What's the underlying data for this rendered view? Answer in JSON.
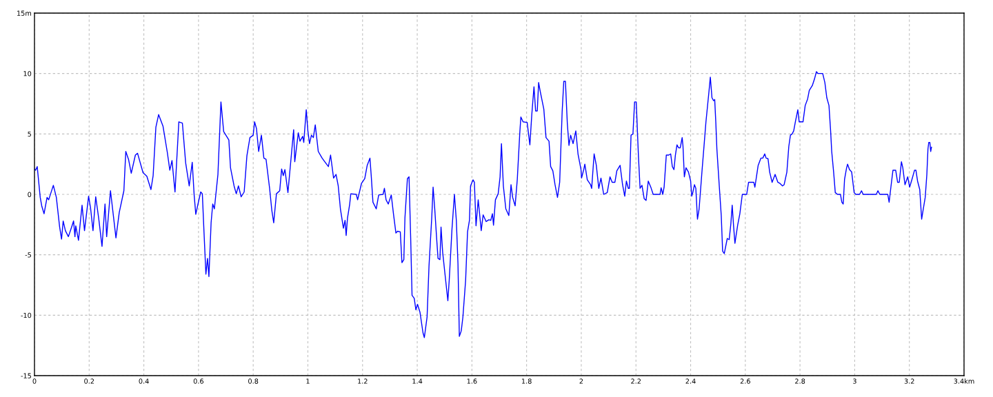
{
  "chart_data": {
    "type": "line",
    "xlim": [
      0,
      3.4
    ],
    "xticks": [
      0,
      0.2,
      0.4,
      0.6,
      0.8,
      1,
      1.2,
      1.4,
      1.6,
      1.8,
      2,
      2.2,
      2.4,
      2.6,
      2.8,
      3,
      3.2,
      {
        "value": 3.4,
        "label": "3.4km"
      }
    ],
    "ylim": [
      -15,
      15
    ],
    "yticks": [
      -15,
      -10,
      -5,
      0,
      5,
      10,
      {
        "value": 15,
        "label": "15m"
      }
    ],
    "grid": true,
    "line_style": "solid",
    "series": [
      {
        "color": "#0000ff",
        "x": [
          0,
          0.004,
          0.01,
          0.021,
          0.027,
          0.035,
          0.046,
          0.052,
          0.069,
          0.08,
          0.092,
          0.099,
          0.105,
          0.113,
          0.124,
          0.136,
          0.143,
          0.148,
          0.151,
          0.161,
          0.174,
          0.183,
          0.198,
          0.205,
          0.214,
          0.224,
          0.235,
          0.247,
          0.258,
          0.264,
          0.278,
          0.298,
          0.31,
          0.327,
          0.334,
          0.344,
          0.354,
          0.369,
          0.377,
          0.397,
          0.411,
          0.426,
          0.434,
          0.444,
          0.454,
          0.47,
          0.486,
          0.495,
          0.503,
          0.514,
          0.528,
          0.541,
          0.553,
          0.566,
          0.577,
          0.584,
          0.59,
          0.597,
          0.608,
          0.614,
          0.62,
          0.627,
          0.633,
          0.638,
          0.646,
          0.652,
          0.658,
          0.671,
          0.682,
          0.692,
          0.711,
          0.717,
          0.73,
          0.738,
          0.746,
          0.756,
          0.767,
          0.777,
          0.788,
          0.8,
          0.805,
          0.812,
          0.82,
          0.83,
          0.839,
          0.847,
          0.86,
          0.868,
          0.875,
          0.885,
          0.897,
          0.904,
          0.91,
          0.916,
          0.927,
          0.948,
          0.952,
          0.965,
          0.971,
          0.981,
          0.985,
          0.994,
          1.0,
          1.006,
          1.013,
          1.02,
          1.027,
          1.038,
          1.052,
          1.065,
          1.075,
          1.083,
          1.094,
          1.103,
          1.111,
          1.119,
          1.13,
          1.136,
          1.14,
          1.145,
          1.153,
          1.157,
          1.177,
          1.182,
          1.196,
          1.208,
          1.217,
          1.227,
          1.232,
          1.238,
          1.25,
          1.259,
          1.275,
          1.28,
          1.286,
          1.294,
          1.305,
          1.313,
          1.322,
          1.328,
          1.338,
          1.344,
          1.351,
          1.355,
          1.364,
          1.37,
          1.376,
          1.381,
          1.389,
          1.395,
          1.401,
          1.41,
          1.421,
          1.426,
          1.436,
          1.443,
          1.453,
          1.458,
          1.464,
          1.471,
          1.476,
          1.483,
          1.487,
          1.493,
          1.502,
          1.512,
          1.517,
          1.527,
          1.536,
          1.543,
          1.549,
          1.554,
          1.561,
          1.567,
          1.577,
          1.584,
          1.591,
          1.595,
          1.604,
          1.609,
          1.615,
          1.623,
          1.628,
          1.634,
          1.641,
          1.652,
          1.662,
          1.669,
          1.675,
          1.679,
          1.686,
          1.696,
          1.703,
          1.708,
          1.715,
          1.724,
          1.735,
          1.743,
          1.749,
          1.758,
          1.766,
          1.775,
          1.779,
          1.787,
          1.802,
          1.812,
          1.819,
          1.827,
          1.833,
          1.839,
          1.844,
          1.85,
          1.863,
          1.871,
          1.882,
          1.888,
          1.896,
          1.904,
          1.913,
          1.921,
          1.93,
          1.936,
          1.942,
          1.949,
          1.955,
          1.961,
          1.97,
          1.98,
          1.988,
          1.999,
          2.001,
          2.009,
          2.013,
          2.022,
          2.034,
          2.038,
          2.047,
          2.055,
          2.064,
          2.072,
          2.082,
          2.095,
          2.105,
          2.113,
          2.123,
          2.13,
          2.142,
          2.151,
          2.159,
          2.165,
          2.172,
          2.176,
          2.182,
          2.189,
          2.195,
          2.201,
          2.209,
          2.215,
          2.222,
          2.23,
          2.237,
          2.245,
          2.255,
          2.263,
          2.288,
          2.292,
          2.298,
          2.303,
          2.311,
          2.32,
          2.327,
          2.333,
          2.339,
          2.344,
          2.35,
          2.356,
          2.362,
          2.369,
          2.372,
          2.377,
          2.383,
          2.392,
          2.4,
          2.404,
          2.408,
          2.414,
          2.419,
          2.425,
          2.431,
          2.442,
          2.45,
          2.456,
          2.467,
          2.472,
          2.478,
          2.484,
          2.488,
          2.492,
          2.496,
          2.505,
          2.512,
          2.517,
          2.523,
          2.534,
          2.541,
          2.547,
          2.552,
          2.557,
          2.562,
          2.572,
          2.58,
          2.589,
          2.605,
          2.612,
          2.631,
          2.635,
          2.647,
          2.657,
          2.664,
          2.671,
          2.676,
          2.683,
          2.689,
          2.698,
          2.709,
          2.719,
          2.727,
          2.736,
          2.742,
          2.752,
          2.759,
          2.765,
          2.771,
          2.777,
          2.783,
          2.792,
          2.797,
          2.811,
          2.819,
          2.828,
          2.834,
          2.845,
          2.853,
          2.86,
          2.866,
          2.883,
          2.891,
          2.898,
          2.906,
          2.912,
          2.916,
          2.923,
          2.929,
          2.937,
          2.948,
          2.953,
          2.958,
          2.963,
          2.97,
          2.974,
          2.981,
          2.989,
          2.998,
          3.004,
          3.018,
          3.025,
          3.031,
          3.079,
          3.085,
          3.092,
          3.121,
          3.126,
          3.133,
          3.14,
          3.15,
          3.157,
          3.163,
          3.171,
          3.176,
          3.184,
          3.194,
          3.201,
          3.209,
          3.219,
          3.224,
          3.23,
          3.238,
          3.245,
          3.251,
          3.258,
          3.264,
          3.268,
          3.271,
          3.275,
          3.278,
          3.281
        ],
        "values": [
          2.1,
          2.0,
          2.3,
          -0.25,
          -1.0,
          -1.6,
          -0.25,
          -0.45,
          0.75,
          -0.25,
          -2.7,
          -3.7,
          -2.2,
          -3.0,
          -3.5,
          -2.7,
          -2.2,
          -3.5,
          -2.6,
          -3.8,
          -0.9,
          -3.0,
          -0.15,
          -1.1,
          -3.0,
          -0.2,
          -2.0,
          -4.3,
          -0.8,
          -3.5,
          0.3,
          -3.6,
          -1.5,
          0.3,
          3.55,
          2.9,
          1.75,
          3.25,
          3.4,
          1.8,
          1.5,
          0.4,
          1.55,
          5.55,
          6.6,
          5.65,
          3.45,
          2.0,
          2.8,
          0.2,
          6.0,
          5.9,
          2.6,
          0.7,
          2.65,
          -0.05,
          -1.65,
          -0.9,
          0.2,
          0.05,
          -3.1,
          -6.6,
          -5.3,
          -6.8,
          -2.35,
          -0.8,
          -1.2,
          1.65,
          7.65,
          5.2,
          4.5,
          2.2,
          0.7,
          0.05,
          0.7,
          -0.2,
          0.2,
          3.2,
          4.7,
          4.9,
          6.0,
          5.45,
          3.55,
          4.9,
          3.0,
          2.9,
          0.5,
          -1.3,
          -2.35,
          0.05,
          0.3,
          2.1,
          1.55,
          2.05,
          0.15,
          5.35,
          2.7,
          5.1,
          4.4,
          4.8,
          4.3,
          7.0,
          5.25,
          4.2,
          4.9,
          4.7,
          5.75,
          3.55,
          3.0,
          2.6,
          2.3,
          3.25,
          1.35,
          1.65,
          0.7,
          -1.2,
          -2.8,
          -2.15,
          -3.4,
          -1.95,
          -0.8,
          0.05,
          0.0,
          -0.45,
          0.9,
          1.3,
          2.4,
          3.0,
          1.45,
          -0.65,
          -1.2,
          -0.05,
          0.0,
          0.5,
          -0.45,
          -0.8,
          -0.05,
          -1.6,
          -3.2,
          -3.05,
          -3.1,
          -5.65,
          -5.4,
          -1.95,
          1.3,
          1.45,
          -3.6,
          -8.35,
          -8.6,
          -9.55,
          -9.1,
          -9.75,
          -11.45,
          -11.85,
          -10.15,
          -5.95,
          -1.95,
          0.6,
          -1.2,
          -3.65,
          -5.3,
          -5.4,
          -2.7,
          -4.8,
          -6.7,
          -8.8,
          -7.1,
          -2.9,
          0.0,
          -2.15,
          -5.75,
          -11.75,
          -11.3,
          -10.15,
          -7.1,
          -3.1,
          -2.15,
          0.7,
          1.2,
          1.0,
          -2.6,
          -0.45,
          -1.6,
          -3.0,
          -1.7,
          -2.25,
          -2.1,
          -2.15,
          -1.6,
          -2.55,
          -0.45,
          0.05,
          1.45,
          4.2,
          0.7,
          -1.2,
          -1.75,
          0.8,
          -0.25,
          -0.95,
          1.25,
          5.05,
          6.4,
          6.0,
          5.95,
          4.1,
          6.6,
          8.9,
          6.9,
          6.9,
          9.25,
          8.5,
          7.05,
          4.7,
          4.4,
          2.3,
          1.95,
          0.8,
          -0.25,
          1.0,
          6.8,
          9.35,
          9.35,
          5.85,
          4.05,
          4.9,
          4.2,
          5.25,
          3.35,
          2.05,
          1.35,
          2.05,
          2.5,
          1.2,
          0.8,
          0.5,
          3.35,
          2.4,
          0.5,
          1.35,
          0.0,
          0.15,
          1.45,
          1.0,
          1.0,
          1.95,
          2.4,
          0.8,
          -0.15,
          1.1,
          0.5,
          0.5,
          4.9,
          5.0,
          7.65,
          7.65,
          3.2,
          0.5,
          0.75,
          -0.35,
          -0.5,
          1.1,
          0.55,
          0.0,
          0.0,
          0.55,
          0.0,
          0.6,
          3.25,
          3.25,
          3.35,
          2.3,
          2.05,
          3.2,
          4.1,
          3.85,
          3.85,
          4.7,
          4.0,
          1.45,
          2.2,
          1.85,
          1.1,
          -0.15,
          0.15,
          0.8,
          0.5,
          -2.05,
          -1.2,
          2.05,
          4.3,
          6.0,
          8.5,
          9.7,
          8.0,
          7.75,
          7.85,
          6.0,
          3.75,
          0.6,
          -1.75,
          -4.7,
          -4.9,
          -3.65,
          -3.75,
          -2.45,
          -0.9,
          -2.6,
          -4.05,
          -2.55,
          -1.6,
          0.0,
          0.0,
          1.0,
          1.0,
          0.6,
          2.4,
          3.0,
          3.0,
          3.35,
          3.0,
          2.95,
          1.85,
          1.0,
          1.65,
          1.0,
          0.9,
          0.7,
          0.8,
          1.85,
          3.95,
          4.9,
          5.0,
          5.25,
          6.0,
          7.0,
          6.0,
          6.0,
          7.35,
          7.9,
          8.6,
          9.0,
          9.55,
          10.15,
          10.0,
          10.0,
          9.25,
          8.0,
          7.35,
          5.25,
          3.55,
          1.85,
          0.15,
          0.0,
          0.0,
          -0.65,
          -0.8,
          1.25,
          2.15,
          2.5,
          2.05,
          1.85,
          0.15,
          0.0,
          0.0,
          0.3,
          0.0,
          0.0,
          0.3,
          0.0,
          0.0,
          -0.65,
          0.7,
          2.0,
          2.0,
          1.0,
          1.0,
          2.7,
          2.2,
          0.8,
          1.45,
          0.6,
          1.2,
          2.0,
          2.0,
          1.1,
          0.4,
          -2.05,
          -1.2,
          -0.25,
          1.65,
          3.75,
          4.3,
          4.3,
          3.55,
          3.9
        ]
      }
    ]
  }
}
